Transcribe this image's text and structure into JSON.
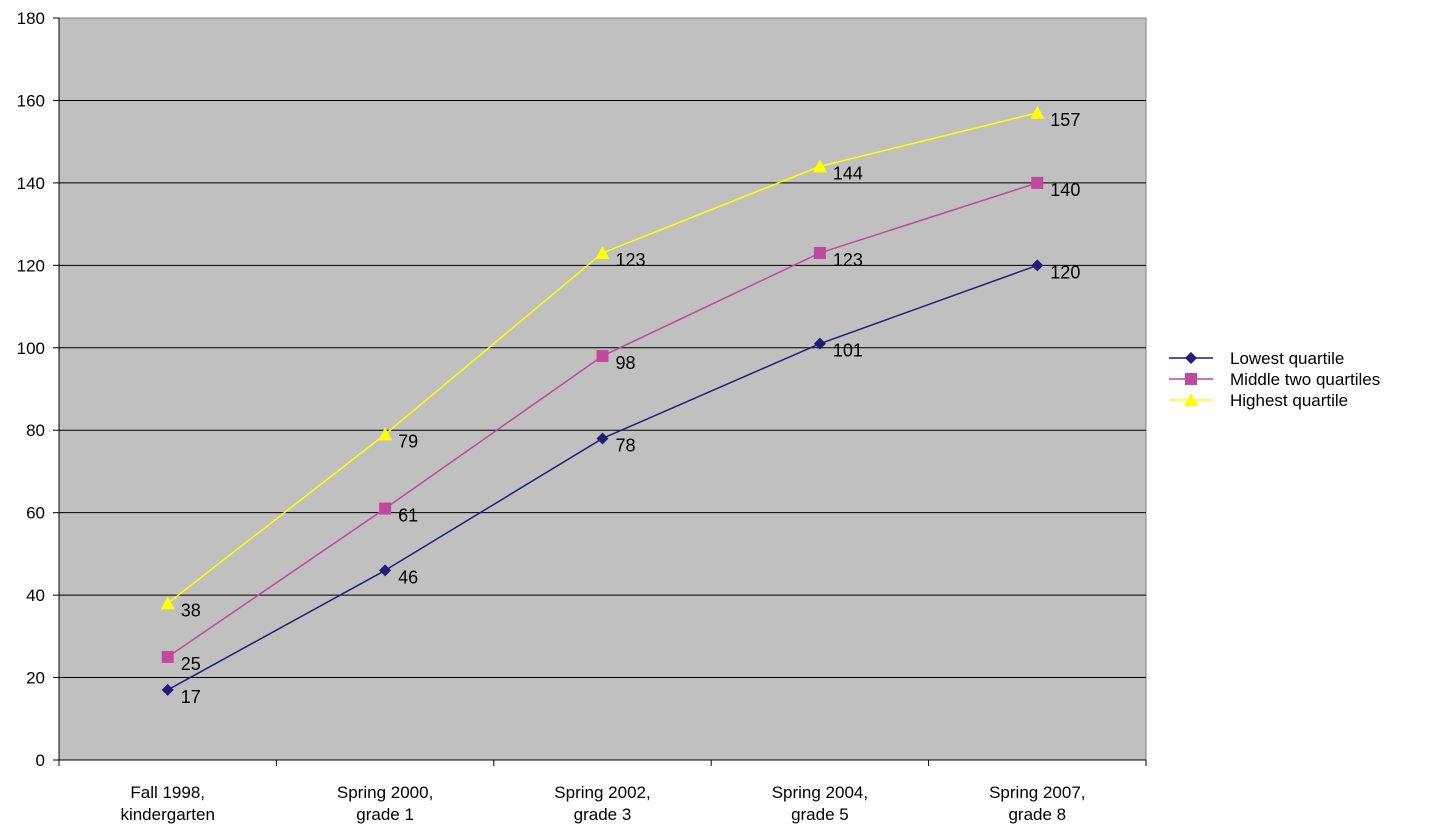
{
  "chart_data": {
    "type": "line",
    "title": "",
    "xlabel": "",
    "ylabel": "",
    "ylim": [
      0,
      180
    ],
    "ytick_step": 20,
    "grid": true,
    "legend_placement": "right",
    "plot_background": "#c0c0c0",
    "categories": [
      [
        "Fall 1998,",
        "kindergarten"
      ],
      [
        "Spring 2000,",
        "grade 1"
      ],
      [
        "Spring 2002,",
        "grade 3"
      ],
      [
        "Spring 2004,",
        "grade 5"
      ],
      [
        "Spring 2007,",
        "grade 8"
      ]
    ],
    "series": [
      {
        "name": "Lowest quartile",
        "color": "#1f1f7a",
        "marker": "diamond",
        "values": [
          17,
          46,
          78,
          101,
          120
        ]
      },
      {
        "name": "Middle two quartiles",
        "color": "#c0499e",
        "marker": "square",
        "values": [
          25,
          61,
          98,
          123,
          140
        ]
      },
      {
        "name": "Highest quartile",
        "color": "#ffff00",
        "marker": "triangle",
        "values": [
          38,
          79,
          123,
          144,
          157
        ]
      }
    ]
  }
}
